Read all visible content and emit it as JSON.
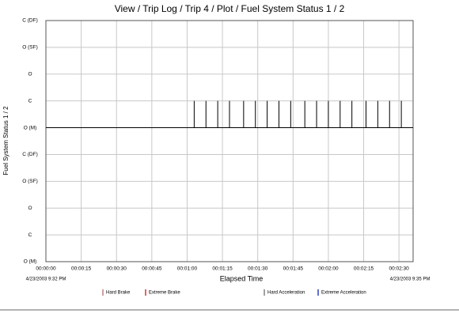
{
  "chart_data": {
    "type": "line",
    "title": "View / Trip Log / Trip 4 / Plot / Fuel System Status 1 / 2",
    "x_label": "Elapsed Time",
    "y_label": "Fuel System Status 1 / 2",
    "x_start_label": "4/23/2003 9:32 PM",
    "x_end_label": "4/23/2003 9:35 PM",
    "xlim": [
      0,
      156
    ],
    "xticks": [
      {
        "value": 0,
        "label": "00:00:00"
      },
      {
        "value": 15,
        "label": "00:00:15"
      },
      {
        "value": 30,
        "label": "00:00:30"
      },
      {
        "value": 45,
        "label": "00:00:45"
      },
      {
        "value": 60,
        "label": "00:01:00"
      },
      {
        "value": 75,
        "label": "00:01:15"
      },
      {
        "value": 90,
        "label": "00:01:30"
      },
      {
        "value": 105,
        "label": "00:01:45"
      },
      {
        "value": 120,
        "label": "00:02:00"
      },
      {
        "value": 135,
        "label": "00:02:15"
      },
      {
        "value": 150,
        "label": "00:02:30"
      }
    ],
    "ylim": [
      0,
      9
    ],
    "yticks": [
      {
        "value": 0,
        "label": "O (M)"
      },
      {
        "value": 1,
        "label": "C"
      },
      {
        "value": 2,
        "label": "O"
      },
      {
        "value": 3,
        "label": "O (SF)"
      },
      {
        "value": 4,
        "label": "C (DF)"
      },
      {
        "value": 5,
        "label": "O (M)"
      },
      {
        "value": 6,
        "label": "C"
      },
      {
        "value": 7,
        "label": "O"
      },
      {
        "value": 8,
        "label": "O (SF)"
      },
      {
        "value": 9,
        "label": "C (DF)"
      }
    ],
    "grid": true,
    "series": [
      {
        "color": "#000000",
        "x": [
          0,
          63,
          63,
          63,
          68,
          68,
          68,
          73,
          73,
          73,
          78,
          78,
          78,
          84,
          84,
          84,
          89,
          89,
          89,
          94,
          94,
          94,
          99,
          99,
          99,
          104,
          104,
          104,
          110,
          110,
          110,
          115,
          115,
          115,
          120,
          120,
          120,
          125,
          125,
          125,
          130,
          130,
          130,
          136,
          136,
          136,
          141,
          141,
          141,
          146,
          146,
          146,
          151,
          151,
          151,
          156
        ],
        "values": [
          5,
          5,
          6,
          5,
          5,
          6,
          5,
          5,
          6,
          5,
          5,
          6,
          5,
          5,
          6,
          5,
          5,
          6,
          5,
          5,
          6,
          5,
          5,
          6,
          5,
          5,
          6,
          5,
          5,
          6,
          5,
          5,
          6,
          5,
          5,
          6,
          5,
          5,
          6,
          5,
          5,
          6,
          5,
          5,
          6,
          5,
          5,
          6,
          5,
          5,
          6,
          5,
          5,
          6,
          5,
          5
        ]
      }
    ],
    "legend": [
      {
        "name": "Hard Brake",
        "color": "#c08080"
      },
      {
        "name": "Extreme Brake",
        "color": "#e03030"
      },
      {
        "name": "Hard Acceleration",
        "color": "#808080"
      },
      {
        "name": "Extreme Acceleration",
        "color": "#3040c0"
      }
    ]
  }
}
